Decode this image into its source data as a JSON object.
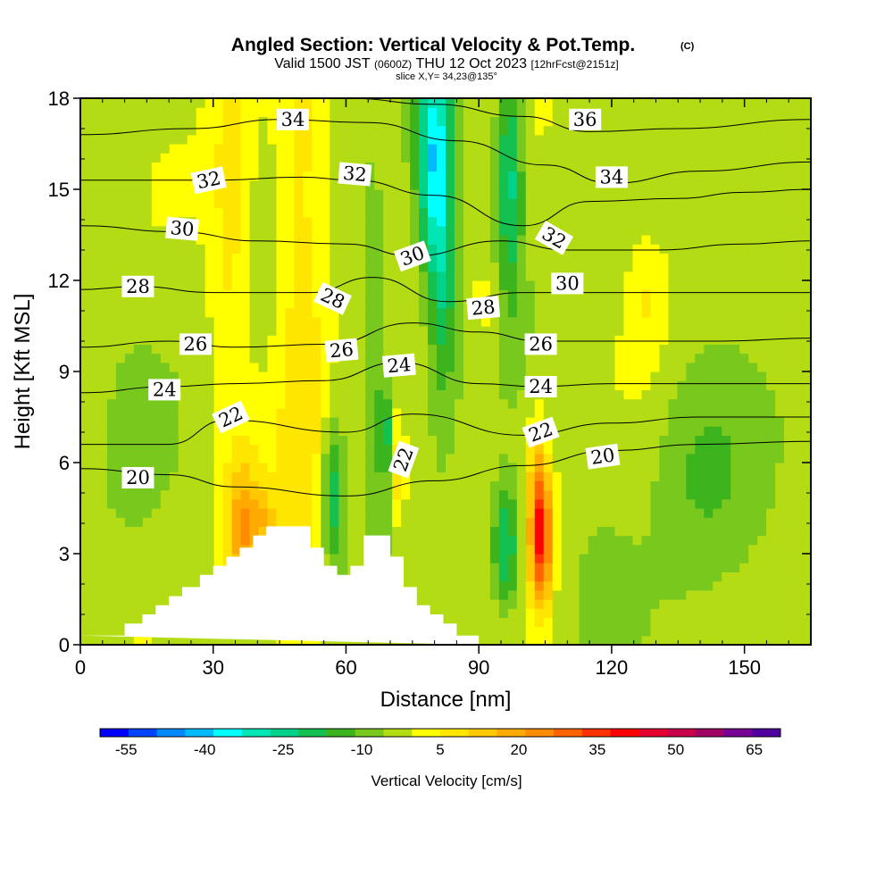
{
  "header": {
    "title": "Angled Section: Vertical Velocity & Pot.Temp.",
    "title_mark": "(C)",
    "valid_prefix": "Valid 1500 JST",
    "valid_utc": "(0600Z)",
    "valid_date": "THU 12 Oct 2023",
    "forecast": "[12hrFcst@2151z]",
    "slice": "slice X,Y= 34,23@135°"
  },
  "chart_data": {
    "type": "heatmap",
    "xlabel": "Distance [nm]",
    "ylabel": "Height [Kft MSL]",
    "xlim": [
      0,
      165
    ],
    "ylim": [
      0,
      18
    ],
    "xticks": [
      0,
      30,
      60,
      90,
      120,
      150
    ],
    "yticks": [
      0,
      3,
      6,
      9,
      12,
      15,
      18
    ],
    "colorbar": {
      "label": "Vertical Velocity [cm/s]",
      "ticks": [
        -55,
        -40,
        -25,
        -10,
        5,
        20,
        35,
        50,
        65
      ],
      "min": -60,
      "max": 70,
      "colors": [
        "#0000ff",
        "#0044ff",
        "#0088ff",
        "#00bbff",
        "#00ffff",
        "#00e6b4",
        "#00d28c",
        "#14c050",
        "#3cb41e",
        "#78c81e",
        "#b4dc14",
        "#ffff00",
        "#ffe600",
        "#ffc800",
        "#ffaa00",
        "#ff8c00",
        "#ff6400",
        "#ff3200",
        "#ff0000",
        "#e60032",
        "#c8004b",
        "#a00064",
        "#780096",
        "#5000a0"
      ]
    },
    "terrain": [
      [
        0,
        0.3
      ],
      [
        10,
        0.3
      ],
      [
        10,
        0.7
      ],
      [
        14,
        0.7
      ],
      [
        14,
        1.0
      ],
      [
        17,
        1.0
      ],
      [
        17,
        1.3
      ],
      [
        20,
        1.3
      ],
      [
        20,
        1.6
      ],
      [
        23,
        1.6
      ],
      [
        23,
        1.9
      ],
      [
        27,
        1.9
      ],
      [
        27,
        2.3
      ],
      [
        30,
        2.3
      ],
      [
        30,
        2.6
      ],
      [
        33,
        2.6
      ],
      [
        33,
        2.9
      ],
      [
        36,
        2.9
      ],
      [
        36,
        3.2
      ],
      [
        39,
        3.2
      ],
      [
        39,
        3.6
      ],
      [
        42,
        3.6
      ],
      [
        42,
        3.9
      ],
      [
        52,
        3.9
      ],
      [
        52,
        3.2
      ],
      [
        55,
        3.2
      ],
      [
        55,
        2.6
      ],
      [
        58,
        2.6
      ],
      [
        58,
        2.3
      ],
      [
        61,
        2.3
      ],
      [
        61,
        2.6
      ],
      [
        64,
        2.6
      ],
      [
        64,
        3.6
      ],
      [
        70,
        3.6
      ],
      [
        70,
        2.9
      ],
      [
        73,
        2.9
      ],
      [
        73,
        1.9
      ],
      [
        76,
        1.9
      ],
      [
        76,
        1.3
      ],
      [
        79,
        1.3
      ],
      [
        79,
        1.0
      ],
      [
        82,
        1.0
      ],
      [
        82,
        0.7
      ],
      [
        85,
        0.7
      ],
      [
        85,
        0.3
      ],
      [
        90,
        0.3
      ],
      [
        90,
        0
      ]
    ],
    "velocity_features": [
      {
        "x": 50,
        "y": 10,
        "wx": 6,
        "wy": 14,
        "w": 12
      },
      {
        "x": 34,
        "y": 14,
        "wx": 5,
        "wy": 8,
        "w": 10
      },
      {
        "x": 37,
        "y": 3.8,
        "wx": 4,
        "wy": 2.2,
        "w": 22
      },
      {
        "x": 42,
        "y": 4.2,
        "wx": 2,
        "wy": 1.2,
        "w": 10
      },
      {
        "x": 104,
        "y": 3.5,
        "wx": 2.5,
        "wy": 2.2,
        "w": 40
      },
      {
        "x": 103,
        "y": 6,
        "wx": 2,
        "wy": 2,
        "w": 12
      },
      {
        "x": 72,
        "y": 5.5,
        "wx": 1.5,
        "wy": 1.8,
        "w": 15
      },
      {
        "x": 57,
        "y": 5,
        "wx": 2.5,
        "wy": 2.5,
        "w": -18
      },
      {
        "x": 68.5,
        "y": 7,
        "wx": 1,
        "wy": 1.5,
        "w": -32
      },
      {
        "x": 80,
        "y": 16,
        "wx": 4,
        "wy": 4,
        "w": -34
      },
      {
        "x": 82,
        "y": 11.5,
        "wx": 3,
        "wy": 4,
        "w": -14
      },
      {
        "x": 97,
        "y": 15.5,
        "wx": 3,
        "wy": 4,
        "w": -22
      },
      {
        "x": 96,
        "y": 3.2,
        "wx": 3,
        "wy": 2,
        "w": -22
      },
      {
        "x": 66,
        "y": 11,
        "wx": 3,
        "wy": 4,
        "w": -10
      },
      {
        "x": 128,
        "y": 11.5,
        "wx": 5,
        "wy": 2.5,
        "w": 8
      },
      {
        "x": 91,
        "y": 11,
        "wx": 3,
        "wy": 2,
        "w": 5
      },
      {
        "x": 140,
        "y": 6,
        "wx": 12,
        "wy": 4,
        "w": -8
      },
      {
        "x": 150,
        "y": 14,
        "wx": 8,
        "wy": 3,
        "w": -5
      },
      {
        "x": 12,
        "y": 7,
        "wx": 8,
        "wy": 4,
        "w": -3
      },
      {
        "x": 118,
        "y": 2,
        "wx": 6,
        "wy": 2,
        "w": -6
      }
    ],
    "theta_contours": [
      {
        "level": 20,
        "label": "20",
        "pts": [
          [
            0,
            5.8
          ],
          [
            20,
            5.6
          ],
          [
            35,
            5.2
          ],
          [
            60,
            4.9
          ],
          [
            80,
            5.4
          ],
          [
            100,
            5.9
          ],
          [
            120,
            6.4
          ],
          [
            140,
            6.6
          ],
          [
            165,
            6.7
          ]
        ]
      },
      {
        "level": 22,
        "label": "22",
        "pts": [
          [
            0,
            6.6
          ],
          [
            20,
            6.6
          ],
          [
            33,
            7.4
          ],
          [
            60,
            7.0
          ],
          [
            75,
            7.6
          ],
          [
            100,
            6.9
          ],
          [
            120,
            7.3
          ],
          [
            140,
            7.5
          ],
          [
            165,
            7.5
          ]
        ]
      },
      {
        "level": 24,
        "label": "24",
        "pts": [
          [
            0,
            8.3
          ],
          [
            20,
            8.5
          ],
          [
            35,
            8.6
          ],
          [
            55,
            8.7
          ],
          [
            72,
            9.3
          ],
          [
            90,
            8.6
          ],
          [
            103,
            8.5
          ],
          [
            120,
            8.6
          ],
          [
            140,
            8.6
          ],
          [
            165,
            8.6
          ]
        ]
      },
      {
        "level": 26,
        "label": "26",
        "pts": [
          [
            0,
            9.8
          ],
          [
            20,
            10.0
          ],
          [
            35,
            9.8
          ],
          [
            56,
            9.9
          ],
          [
            75,
            10.6
          ],
          [
            90,
            10.3
          ],
          [
            104,
            10.0
          ],
          [
            125,
            10.0
          ],
          [
            145,
            10.0
          ],
          [
            165,
            10.1
          ]
        ]
      },
      {
        "level": 28,
        "label": "28",
        "pts": [
          [
            0,
            11.7
          ],
          [
            13,
            11.8
          ],
          [
            30,
            11.6
          ],
          [
            52,
            11.6
          ],
          [
            66,
            12.1
          ],
          [
            83,
            11.3
          ],
          [
            100,
            11.6
          ],
          [
            125,
            11.6
          ],
          [
            145,
            11.6
          ],
          [
            165,
            11.6
          ]
        ]
      },
      {
        "level": 30,
        "label": "30",
        "pts": [
          [
            0,
            13.8
          ],
          [
            22,
            13.6
          ],
          [
            40,
            13.3
          ],
          [
            60,
            13.2
          ],
          [
            75,
            12.8
          ],
          [
            95,
            13.3
          ],
          [
            110,
            13.0
          ],
          [
            130,
            13.0
          ],
          [
            150,
            13.2
          ],
          [
            165,
            13.3
          ]
        ]
      },
      {
        "level": 32,
        "label": "32",
        "pts": [
          [
            0,
            15.3
          ],
          [
            30,
            15.3
          ],
          [
            50,
            15.4
          ],
          [
            62,
            15.3
          ],
          [
            80,
            14.8
          ],
          [
            100,
            13.8
          ],
          [
            115,
            14.6
          ],
          [
            135,
            14.7
          ],
          [
            150,
            14.9
          ],
          [
            165,
            15.0
          ]
        ]
      },
      {
        "level": 34,
        "label": "34",
        "pts": [
          [
            0,
            16.8
          ],
          [
            25,
            17.0
          ],
          [
            45,
            17.3
          ],
          [
            65,
            17.2
          ],
          [
            85,
            16.6
          ],
          [
            105,
            15.8
          ],
          [
            120,
            15.2
          ],
          [
            140,
            15.6
          ],
          [
            165,
            15.9
          ]
        ]
      },
      {
        "level": 36,
        "label": "36",
        "pts": [
          [
            60,
            18.0
          ],
          [
            80,
            17.8
          ],
          [
            100,
            17.4
          ],
          [
            115,
            16.9
          ],
          [
            135,
            17.0
          ],
          [
            165,
            17.3
          ]
        ]
      }
    ],
    "theta_labels": [
      {
        "text": "20",
        "x": 13,
        "y": 5.5,
        "rot": 0
      },
      {
        "text": "22",
        "x": 34,
        "y": 7.5,
        "rot": -25
      },
      {
        "text": "22",
        "x": 73,
        "y": 6.1,
        "rot": -70
      },
      {
        "text": "22",
        "x": 104,
        "y": 7.0,
        "rot": -20
      },
      {
        "text": "20",
        "x": 118,
        "y": 6.2,
        "rot": -8
      },
      {
        "text": "24",
        "x": 19,
        "y": 8.4,
        "rot": 0
      },
      {
        "text": "24",
        "x": 72,
        "y": 9.2,
        "rot": -5
      },
      {
        "text": "24",
        "x": 104,
        "y": 8.5,
        "rot": 0
      },
      {
        "text": "26",
        "x": 26,
        "y": 9.9,
        "rot": 0
      },
      {
        "text": "26",
        "x": 59,
        "y": 9.7,
        "rot": -5
      },
      {
        "text": "26",
        "x": 104,
        "y": 9.9,
        "rot": 0
      },
      {
        "text": "28",
        "x": 13,
        "y": 11.8,
        "rot": 0
      },
      {
        "text": "28",
        "x": 57,
        "y": 11.4,
        "rot": 25
      },
      {
        "text": "28",
        "x": 91,
        "y": 11.1,
        "rot": -5
      },
      {
        "text": "30",
        "x": 23,
        "y": 13.7,
        "rot": 5
      },
      {
        "text": "30",
        "x": 75,
        "y": 12.8,
        "rot": -20
      },
      {
        "text": "30",
        "x": 110,
        "y": 11.9,
        "rot": 0
      },
      {
        "text": "32",
        "x": 29,
        "y": 15.3,
        "rot": -12
      },
      {
        "text": "32",
        "x": 62,
        "y": 15.5,
        "rot": 5
      },
      {
        "text": "32",
        "x": 107,
        "y": 13.4,
        "rot": 30
      },
      {
        "text": "34",
        "x": 48,
        "y": 17.3,
        "rot": 0
      },
      {
        "text": "34",
        "x": 120,
        "y": 15.4,
        "rot": 0
      },
      {
        "text": "36",
        "x": 114,
        "y": 17.3,
        "rot": 0
      }
    ]
  }
}
